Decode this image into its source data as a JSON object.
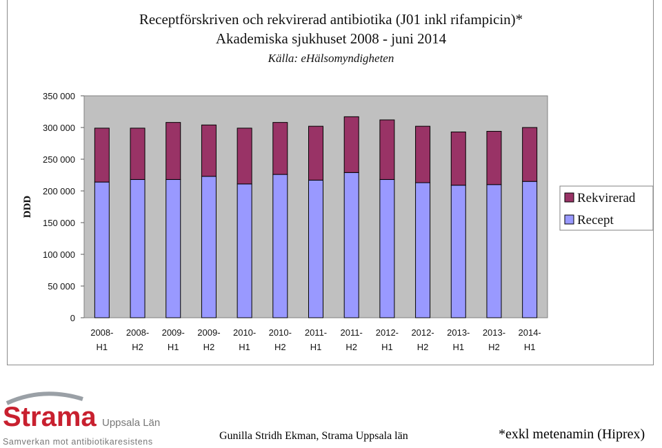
{
  "chart_data": {
    "type": "bar",
    "stacked": true,
    "title": "Receptförskriven och rekvirerad antibiotika (J01 inkl rifampicin)*",
    "subtitle": "Akademiska sjukhuset 2008 - juni 2014",
    "source": "Källa: eHälsomyndigheten",
    "xlabel": "",
    "ylabel": "DDD",
    "ylim": [
      0,
      350000
    ],
    "yticks": [
      "0",
      "50 000",
      "100 000",
      "150 000",
      "200 000",
      "250 000",
      "300 000",
      "350 000"
    ],
    "categories": [
      [
        "2008-",
        "H1"
      ],
      [
        "2008-",
        "H2"
      ],
      [
        "2009-",
        "H1"
      ],
      [
        "2009-",
        "H2"
      ],
      [
        "2010-",
        "H1"
      ],
      [
        "2010-",
        "H2"
      ],
      [
        "2011-",
        "H1"
      ],
      [
        "2011-",
        "H2"
      ],
      [
        "2012-",
        "H1"
      ],
      [
        "2012-",
        "H2"
      ],
      [
        "2013-",
        "H1"
      ],
      [
        "2013-",
        "H2"
      ],
      [
        "2014-",
        "H1"
      ]
    ],
    "series": [
      {
        "name": "Recept",
        "color": "#9999ff",
        "values": [
          214000,
          218000,
          218000,
          223000,
          211000,
          226000,
          217000,
          229000,
          218000,
          213000,
          209000,
          210000,
          215000
        ]
      },
      {
        "name": "Rekvirerad",
        "color": "#993366",
        "values": [
          85000,
          81000,
          90000,
          81000,
          88000,
          82000,
          85000,
          88000,
          94000,
          89000,
          84000,
          84000,
          85000
        ]
      }
    ],
    "legend": "right",
    "legend_order": [
      "Rekvirerad",
      "Recept"
    ],
    "grid": false,
    "plot_background": "#c0c0c0"
  },
  "logo": {
    "name": "Strama",
    "subtitle": "Uppsala Län",
    "tagline": "Samverkan mot antibiotikaresistens"
  },
  "author": "Gunilla Stridh Ekman, Strama Uppsala län",
  "footnote": "*exkl metenamin (Hiprex)"
}
